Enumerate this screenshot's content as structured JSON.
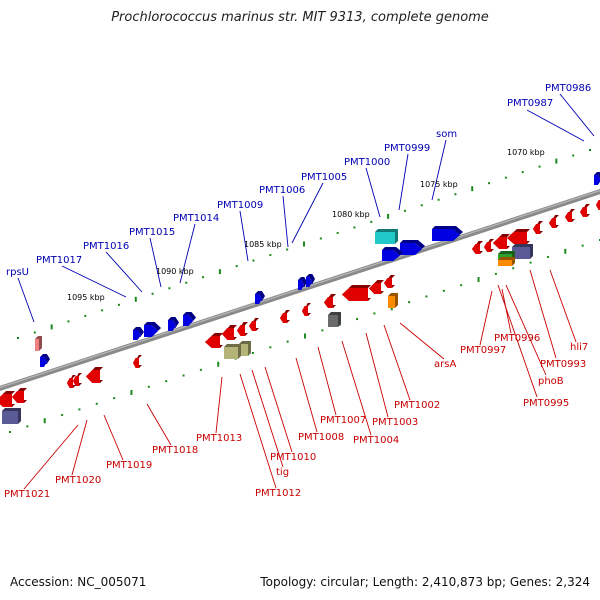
{
  "title": "Prochlorococcus marinus str. MIT 9313, complete genome",
  "footer": {
    "accession": "Accession: NC_005071",
    "topology": "Topology: circular; Length: 2,410,873 bp; Genes: 2,324"
  },
  "scale_labels": [
    "1070 kbp",
    "1075 kbp",
    "1080 kbp",
    "1085 kbp",
    "1090 kbp",
    "1095 kbp"
  ],
  "blue_labels": [
    "PMT0986",
    "PMT0987",
    "som",
    "PMT0999",
    "PMT1000",
    "PMT1005",
    "PMT1006",
    "PMT1009",
    "PMT1014",
    "PMT1015",
    "PMT1016",
    "PMT1017",
    "rpsU"
  ],
  "red_labels": [
    "hli7",
    "PMT0993",
    "phoB",
    "PMT0995",
    "PMT0996",
    "PMT0997",
    "arsA",
    "PMT1002",
    "PMT1003",
    "PMT1004",
    "PMT1007",
    "PMT1008",
    "PMT1010",
    "tig",
    "PMT1012",
    "PMT1013",
    "PMT1018",
    "PMT1019",
    "PMT1020",
    "PMT1021"
  ],
  "colors": {
    "forward_gene": "#0000e0",
    "reverse_gene": "#e00000",
    "backbone": "#8a8a8a",
    "tick": "#1a8a1a",
    "forward_label": "#0000b4",
    "reverse_label": "#c80000"
  }
}
